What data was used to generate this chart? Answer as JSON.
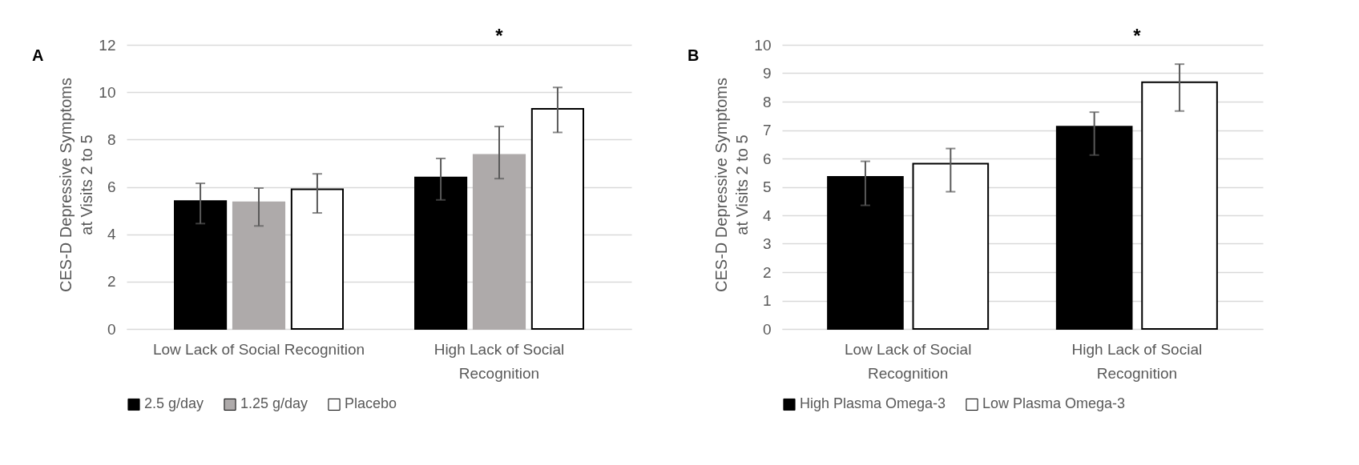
{
  "chart_data": [
    {
      "type": "bar",
      "ylabel": "CES-D Depressive Symptoms at Visits 2 to 5",
      "categories": [
        "Low Lack of Social Recognition",
        "High Lack of Social Recognition"
      ],
      "series": [
        {
          "name": "2.5 g/day",
          "color": "#000000",
          "values": [
            5.4,
            6.4
          ],
          "errors": [
            [
              4.45,
              6.15
            ],
            [
              5.45,
              7.2
            ]
          ]
        },
        {
          "name": "1.25 g/day",
          "color": "#aeaaaa",
          "values": [
            5.35,
            7.35
          ],
          "errors": [
            [
              4.35,
              5.95
            ],
            [
              6.35,
              8.55
            ]
          ]
        },
        {
          "name": "Placebo",
          "color": "#ffffff",
          "values": [
            5.9,
            9.3
          ],
          "errors": [
            [
              4.9,
              6.55
            ],
            [
              8.3,
              10.2
            ]
          ]
        }
      ],
      "ylim": [
        0,
        12
      ],
      "yticks": [
        0,
        2,
        4,
        6,
        8,
        10,
        12
      ],
      "grid": "y",
      "legend": "bottom",
      "annotations": [
        "A",
        "*"
      ]
    },
    {
      "type": "bar",
      "ylabel": "CES-D Depressive Symptoms at Visits 2 to 5",
      "categories": [
        "Low Lack of Social Recognition",
        "High Lack of Social Recognition"
      ],
      "series": [
        {
          "name": "High Plasma Omega-3",
          "color": "#000000",
          "values": [
            5.35,
            7.12
          ],
          "errors": [
            [
              4.35,
              5.9
            ],
            [
              6.12,
              7.63
            ]
          ]
        },
        {
          "name": "Low Plasma Omega-3",
          "color": "#ffffff",
          "values": [
            5.82,
            8.68
          ],
          "errors": [
            [
              4.83,
              6.35
            ],
            [
              7.67,
              9.32
            ]
          ]
        }
      ],
      "ylim": [
        0,
        10
      ],
      "yticks": [
        0,
        1,
        2,
        3,
        4,
        5,
        6,
        7,
        8,
        9,
        10
      ],
      "grid": "y",
      "legend": "bottom",
      "annotations": [
        "B",
        "*"
      ]
    }
  ]
}
